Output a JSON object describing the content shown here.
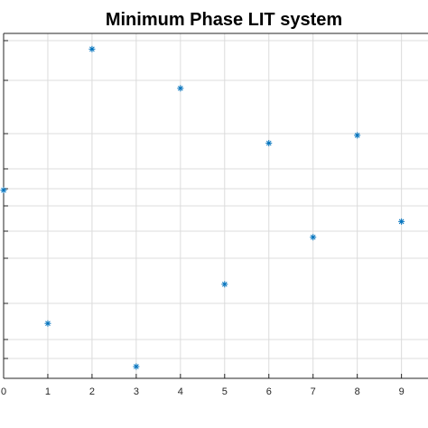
{
  "chart_data": {
    "type": "scatter",
    "title": "Minimum Phase LIT system",
    "xlabel": "",
    "ylabel": "",
    "x": [
      0,
      1,
      2,
      3,
      4,
      5,
      6,
      7,
      8,
      9
    ],
    "y": [
      2.2,
      0.5,
      4.0,
      -0.05,
      3.5,
      1.0,
      2.8,
      1.6,
      2.9,
      1.8
    ],
    "xlim": [
      0,
      9.6
    ],
    "ylim": [
      -0.2,
      4.2
    ],
    "x_ticks": [
      0,
      1,
      2,
      3,
      4,
      5,
      6,
      7,
      8,
      9
    ],
    "x_tick_labels": [
      "0",
      "1",
      "2",
      "3",
      "4",
      "5",
      "6",
      "7",
      "8",
      "9"
    ],
    "grid": true,
    "legend": "none",
    "marker": "asterisk",
    "marker_color": "#0072bd"
  }
}
